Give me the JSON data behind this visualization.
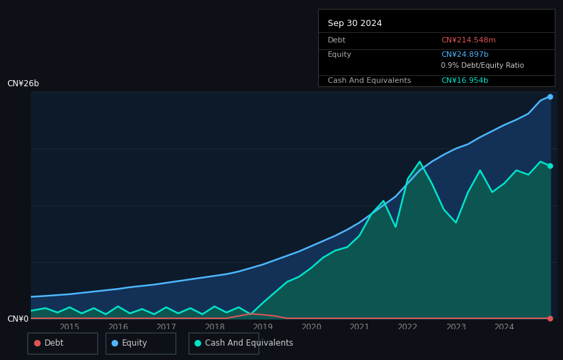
{
  "background_color": "#0d1117",
  "plot_bg_color": "#0d1a2a",
  "tooltip": {
    "date": "Sep 30 2024",
    "debt_label": "Debt",
    "debt_value": "CN¥214.548m",
    "debt_color": "#e05555",
    "equity_label": "Equity",
    "equity_value": "CN¥24.897b",
    "equity_color": "#4db8ff",
    "ratio_text": "0.9% Debt/Equity Ratio",
    "cash_label": "Cash And Equivalents",
    "cash_value": "CN¥16.954b",
    "cash_color": "#00e5cc"
  },
  "y_label_top": "CN¥26b",
  "y_label_bottom": "CN¥0",
  "ylim": [
    0,
    26
  ],
  "xlim": [
    2014.2,
    2025.1
  ],
  "grid_color": "#1e2d3d",
  "equity_color": "#4db8ff",
  "equity_fill": "#133156",
  "debt_color": "#e05555",
  "cash_color": "#00e5cc",
  "cash_fill": "#0d5550",
  "legend": {
    "debt_label": "Debt",
    "equity_label": "Equity",
    "cash_label": "Cash And Equivalents"
  },
  "equity_x": [
    2014.2,
    2014.5,
    2014.75,
    2015.0,
    2015.25,
    2015.5,
    2015.75,
    2016.0,
    2016.25,
    2016.5,
    2016.75,
    2017.0,
    2017.25,
    2017.5,
    2017.75,
    2018.0,
    2018.25,
    2018.5,
    2018.75,
    2019.0,
    2019.25,
    2019.5,
    2019.75,
    2020.0,
    2020.25,
    2020.5,
    2020.75,
    2021.0,
    2021.25,
    2021.5,
    2021.75,
    2022.0,
    2022.25,
    2022.5,
    2022.75,
    2023.0,
    2023.25,
    2023.5,
    2023.75,
    2024.0,
    2024.25,
    2024.5,
    2024.75,
    2024.95
  ],
  "equity_y": [
    2.5,
    2.6,
    2.7,
    2.8,
    2.95,
    3.1,
    3.25,
    3.4,
    3.6,
    3.75,
    3.9,
    4.1,
    4.3,
    4.5,
    4.7,
    4.9,
    5.1,
    5.4,
    5.8,
    6.2,
    6.7,
    7.2,
    7.7,
    8.3,
    8.9,
    9.5,
    10.2,
    11.0,
    12.0,
    13.0,
    14.0,
    15.5,
    17.0,
    18.0,
    18.8,
    19.5,
    20.0,
    20.8,
    21.5,
    22.2,
    22.8,
    23.5,
    25.0,
    25.5
  ],
  "cash_x": [
    2014.2,
    2014.5,
    2014.75,
    2015.0,
    2015.25,
    2015.5,
    2015.75,
    2016.0,
    2016.25,
    2016.5,
    2016.75,
    2017.0,
    2017.25,
    2017.5,
    2017.75,
    2018.0,
    2018.25,
    2018.5,
    2018.75,
    2019.0,
    2019.25,
    2019.5,
    2019.75,
    2020.0,
    2020.25,
    2020.5,
    2020.75,
    2021.0,
    2021.25,
    2021.5,
    2021.75,
    2022.0,
    2022.25,
    2022.5,
    2022.75,
    2023.0,
    2023.25,
    2023.5,
    2023.75,
    2024.0,
    2024.25,
    2024.5,
    2024.75,
    2024.95
  ],
  "cash_y": [
    0.9,
    1.2,
    0.7,
    1.3,
    0.6,
    1.2,
    0.5,
    1.4,
    0.6,
    1.1,
    0.5,
    1.3,
    0.6,
    1.2,
    0.5,
    1.4,
    0.7,
    1.3,
    0.5,
    1.8,
    3.0,
    4.2,
    4.8,
    5.8,
    7.0,
    7.8,
    8.2,
    9.5,
    12.0,
    13.5,
    10.5,
    16.0,
    18.0,
    15.5,
    12.5,
    11.0,
    14.5,
    17.0,
    14.5,
    15.5,
    17.0,
    16.5,
    18.0,
    17.5
  ],
  "debt_x": [
    2014.2,
    2014.5,
    2014.75,
    2015.0,
    2015.25,
    2015.5,
    2015.75,
    2016.0,
    2016.25,
    2016.5,
    2016.75,
    2017.0,
    2017.25,
    2017.5,
    2017.75,
    2018.0,
    2018.25,
    2018.5,
    2018.75,
    2019.0,
    2019.25,
    2019.5,
    2019.75,
    2020.0,
    2020.25,
    2020.5,
    2020.75,
    2021.0,
    2021.25,
    2021.5,
    2021.75,
    2022.0,
    2022.25,
    2022.5,
    2022.75,
    2023.0,
    2023.25,
    2023.5,
    2023.75,
    2024.0,
    2024.25,
    2024.5,
    2024.75,
    2024.95
  ],
  "debt_y": [
    0.04,
    0.04,
    0.04,
    0.04,
    0.04,
    0.04,
    0.04,
    0.04,
    0.04,
    0.04,
    0.04,
    0.04,
    0.04,
    0.04,
    0.04,
    0.04,
    0.04,
    0.3,
    0.55,
    0.45,
    0.3,
    0.04,
    0.04,
    0.04,
    0.04,
    0.04,
    0.04,
    0.04,
    0.04,
    0.04,
    0.04,
    0.04,
    0.04,
    0.04,
    0.04,
    0.04,
    0.04,
    0.04,
    0.04,
    0.04,
    0.04,
    0.04,
    0.04,
    0.04
  ]
}
